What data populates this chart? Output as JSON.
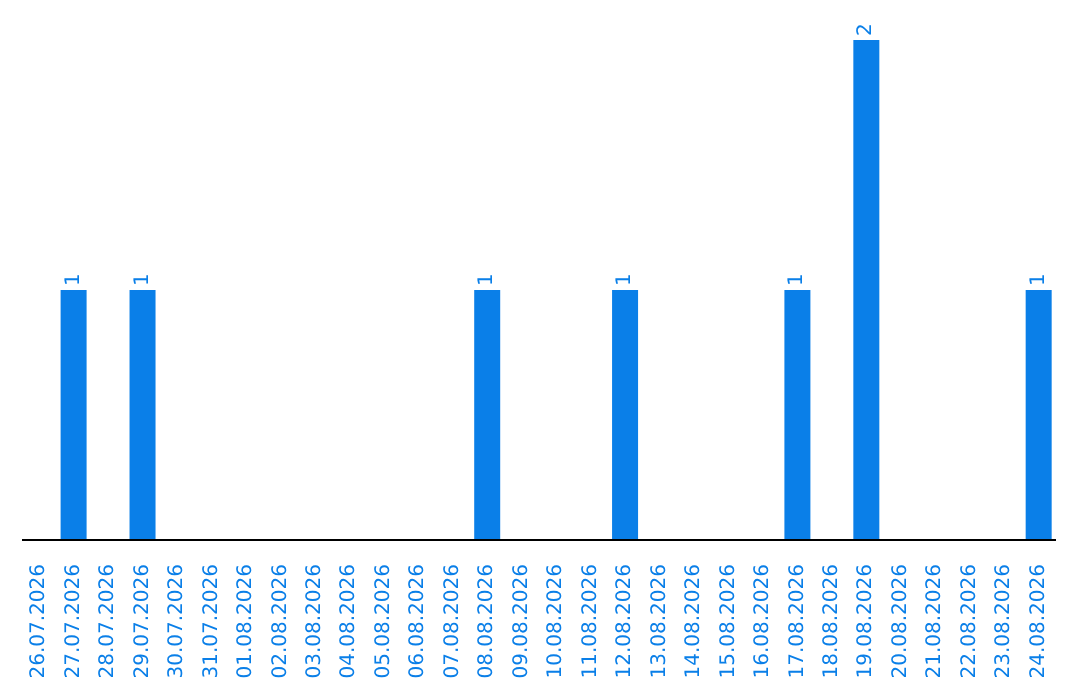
{
  "chart_data": {
    "type": "bar",
    "categories": [
      "26.07.2026",
      "27.07.2026",
      "28.07.2026",
      "29.07.2026",
      "30.07.2026",
      "31.07.2026",
      "01.08.2026",
      "02.08.2026",
      "03.08.2026",
      "04.08.2026",
      "05.08.2026",
      "06.08.2026",
      "07.08.2026",
      "08.08.2026",
      "09.08.2026",
      "10.08.2026",
      "11.08.2026",
      "12.08.2026",
      "13.08.2026",
      "14.08.2026",
      "15.08.2026",
      "16.08.2026",
      "17.08.2026",
      "18.08.2026",
      "19.08.2026",
      "20.08.2026",
      "21.08.2026",
      "22.08.2026",
      "23.08.2026",
      "24.08.2026"
    ],
    "values": [
      0,
      1,
      0,
      1,
      0,
      0,
      0,
      0,
      0,
      0,
      0,
      0,
      0,
      1,
      0,
      0,
      0,
      1,
      0,
      0,
      0,
      0,
      1,
      0,
      2,
      0,
      0,
      0,
      0,
      1
    ],
    "value_labels": [
      null,
      "1",
      null,
      "1",
      null,
      null,
      null,
      null,
      null,
      null,
      null,
      null,
      null,
      "1",
      null,
      null,
      null,
      "1",
      null,
      null,
      null,
      null,
      "1",
      null,
      "2",
      null,
      null,
      null,
      null,
      "1"
    ],
    "color": "#0a7fe8",
    "tick_labels": "x",
    "grid": false
  }
}
